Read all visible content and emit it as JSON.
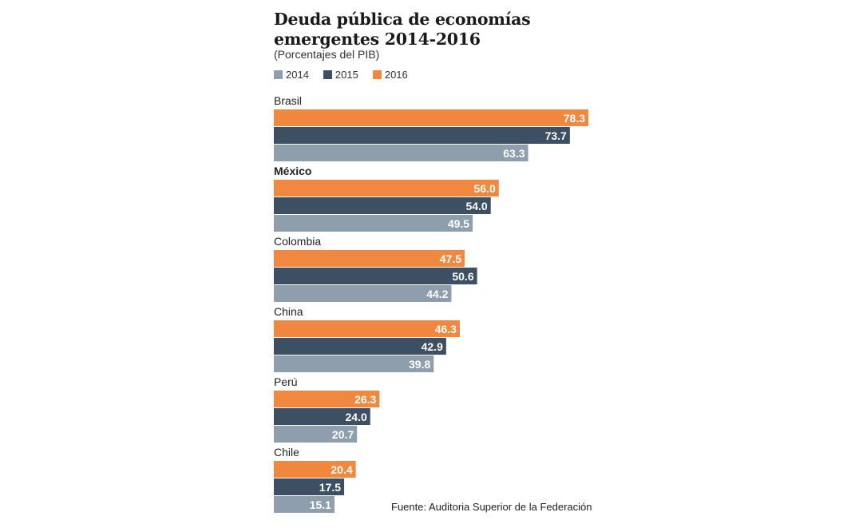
{
  "chart_data": {
    "type": "bar",
    "orientation": "horizontal",
    "title": "Deuda pública de economías emergentes 2014-2016",
    "subtitle": "(Porcentajes del PIB)",
    "categories": [
      "Brasil",
      "México",
      "Colombia",
      "China",
      "Perú",
      "Chile"
    ],
    "series": [
      {
        "name": "2016",
        "color": "#f0883f",
        "values": [
          78.3,
          56.0,
          47.5,
          46.3,
          26.3,
          20.4
        ]
      },
      {
        "name": "2015",
        "color": "#3d5063",
        "values": [
          73.7,
          54.0,
          50.6,
          42.9,
          24.0,
          17.5
        ]
      },
      {
        "name": "2014",
        "color": "#8e9eac",
        "values": [
          63.3,
          49.5,
          44.2,
          39.8,
          20.7,
          15.1
        ]
      }
    ],
    "legend_order": [
      "2014",
      "2015",
      "2016"
    ],
    "legend_placement": "top-left",
    "xlim": [
      0,
      80
    ],
    "grid": false,
    "source": "Fuente: Auditoria Superior de la Federación"
  }
}
